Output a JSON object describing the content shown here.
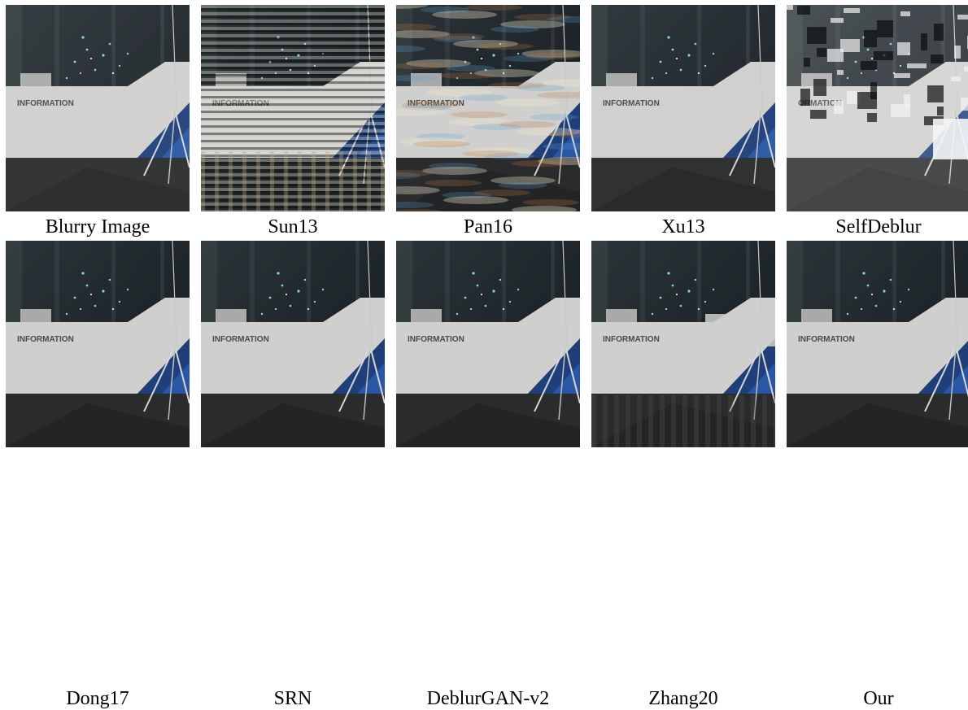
{
  "panel_sign_text": "INFORMATION",
  "panels": [
    {
      "key": "blurry",
      "label": "Blurry Image",
      "artifact": "blur",
      "sign_text": "INFORMATION"
    },
    {
      "key": "sun13",
      "label": "Sun13",
      "artifact": "stripes",
      "sign_text": "INFORMATION"
    },
    {
      "key": "pan16",
      "label": "Pan16",
      "artifact": "ringing",
      "sign_text": "INFORMATION"
    },
    {
      "key": "xu13",
      "label": "Xu13",
      "artifact": "mild",
      "sign_text": "INFORMATION"
    },
    {
      "key": "selfdeblur",
      "label": "SelfDeblur",
      "artifact": "blotchy",
      "sign_text": "ORMATION"
    },
    {
      "key": "dong17",
      "label": "Dong17",
      "artifact": "clean",
      "sign_text": "INFORMATION"
    },
    {
      "key": "srn",
      "label": "SRN",
      "artifact": "clean",
      "sign_text": "INFORMATION"
    },
    {
      "key": "debluragan2",
      "label": "DeblurGAN-v2",
      "artifact": "clean",
      "sign_text": "INFORMATION"
    },
    {
      "key": "zhang20",
      "label": "Zhang20",
      "artifact": "smear",
      "sign_text": "INFORMATION"
    },
    {
      "key": "our",
      "label": "Our",
      "artifact": "clean",
      "sign_text": "INFORMATION"
    }
  ]
}
